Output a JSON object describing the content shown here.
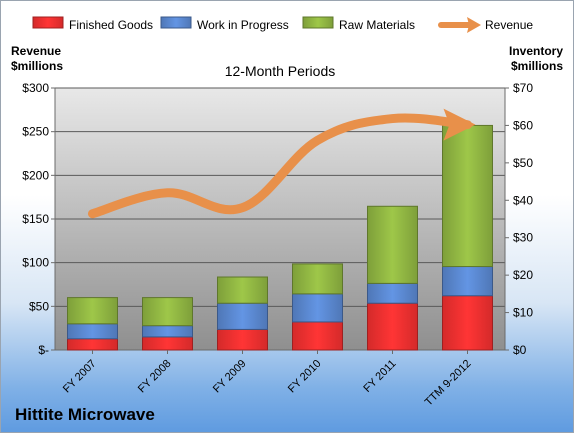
{
  "chart_data": {
    "type": "bar",
    "subtitle": "12-Month Periods",
    "categories": [
      "FY 2007",
      "FY 2008",
      "FY 2009",
      "FY 2010",
      "FY 2011",
      "TTM 9-2012"
    ],
    "series": [
      {
        "name": "Finished Goods",
        "axis": "right",
        "stacked": true,
        "color": "#d42a2a",
        "values": [
          3.0,
          3.5,
          5.5,
          7.5,
          12.5,
          14.5
        ]
      },
      {
        "name": "Work in Progress",
        "axis": "right",
        "stacked": true,
        "color": "#4f77b6",
        "values": [
          4.0,
          3.0,
          7.0,
          7.5,
          5.3,
          7.8
        ]
      },
      {
        "name": "Raw Materials",
        "axis": "right",
        "stacked": true,
        "color": "#7e9f3a",
        "values": [
          7.0,
          7.5,
          7.0,
          8.0,
          20.6,
          37.7
        ]
      },
      {
        "name": "Revenue",
        "axis": "left",
        "type": "line",
        "color": "#e8904a",
        "values": [
          156,
          180,
          163,
          240,
          265,
          258
        ]
      }
    ],
    "left_axis": {
      "label_lines": [
        "Revenue",
        "$millions"
      ],
      "ylim": [
        0,
        300
      ],
      "ticks": [
        "$-",
        "$50",
        "$100",
        "$150",
        "$200",
        "$250",
        "$300"
      ]
    },
    "right_axis": {
      "label_lines": [
        "Inventory",
        "$millions"
      ],
      "ylim": [
        0,
        70
      ],
      "ticks": [
        "$0",
        "$10",
        "$20",
        "$30",
        "$40",
        "$50",
        "$60",
        "$70"
      ]
    },
    "grid": true,
    "legend_position": "top"
  },
  "footer": {
    "company": "Hittite Microwave"
  }
}
